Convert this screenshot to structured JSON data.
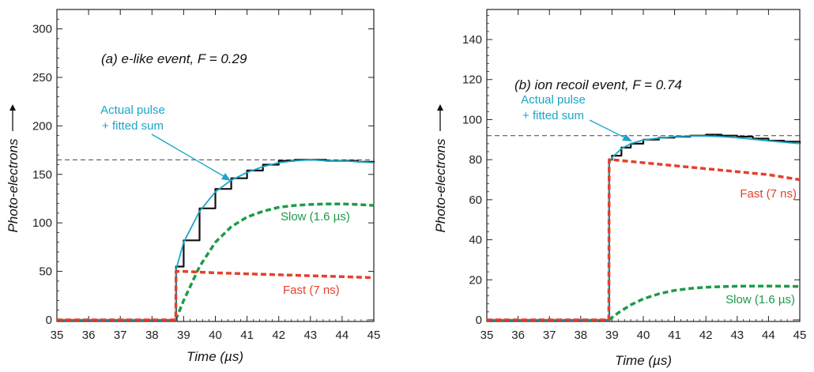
{
  "colors": {
    "actual": "#111111",
    "fit": "#1aa6c8",
    "slow": "#1e9a4a",
    "fast": "#e5402c",
    "dashed": "#444444"
  },
  "chart_data": [
    {
      "type": "line",
      "title": "(a) e-like event, F  = 0.29",
      "xlabel": "Time (µs)",
      "ylabel": "Photo-electrons",
      "xlim": [
        35,
        45
      ],
      "ylim": [
        0,
        320
      ],
      "xticks": [
        35,
        36,
        37,
        38,
        39,
        40,
        41,
        42,
        43,
        44,
        45
      ],
      "yticks": [
        0,
        50,
        100,
        150,
        200,
        250,
        300
      ],
      "reference_line": 165,
      "annotations": {
        "actual": "Actual pulse",
        "fit": "+ fitted sum",
        "slow": "Slow (1.6 µs)",
        "fast": "Fast (7 ns)"
      },
      "series": [
        {
          "key": "actual",
          "x": [
            35,
            38.75,
            38.76,
            39,
            39.5,
            40,
            40.5,
            41,
            41.5,
            42,
            42.5,
            43,
            43.5,
            44,
            44.5,
            45
          ],
          "values": [
            0,
            0,
            55,
            82,
            115,
            135,
            146,
            154,
            160,
            164,
            165,
            165,
            164,
            164,
            163,
            162
          ]
        },
        {
          "key": "fit",
          "x": [
            35,
            38.75,
            38.76,
            39,
            39.5,
            40,
            40.5,
            41,
            41.5,
            42,
            42.5,
            43,
            43.5,
            44,
            44.5,
            45
          ],
          "values": [
            0,
            0,
            52,
            80,
            112,
            132,
            144,
            152,
            158,
            162,
            164,
            165,
            164,
            164,
            163,
            162
          ]
        },
        {
          "key": "slow",
          "x": [
            38.75,
            39,
            39.5,
            40,
            40.5,
            41,
            41.5,
            42,
            42.5,
            43,
            43.5,
            44,
            44.5,
            45
          ],
          "values": [
            0,
            20,
            55,
            80,
            96,
            106,
            112,
            116,
            118,
            119,
            119.5,
            119.5,
            119,
            118
          ]
        },
        {
          "key": "fast",
          "x": [
            35,
            38.75,
            38.76,
            39,
            40,
            41,
            42,
            43,
            44,
            45
          ],
          "values": [
            0,
            0,
            50,
            50,
            48.5,
            47.5,
            46.5,
            45.5,
            44.5,
            43.5
          ]
        }
      ]
    },
    {
      "type": "line",
      "title": "(b) ion recoil event, F = 0.74",
      "xlabel": "Time (µs)",
      "ylabel": "Photo-electrons",
      "xlim": [
        35,
        45
      ],
      "ylim": [
        0,
        155
      ],
      "xticks": [
        35,
        36,
        37,
        38,
        39,
        40,
        41,
        42,
        43,
        44,
        45
      ],
      "yticks": [
        0,
        20,
        40,
        60,
        80,
        100,
        120,
        140
      ],
      "reference_line": 92,
      "annotations": {
        "actual": "Actual pulse",
        "fit": "+ fitted sum",
        "slow": "Slow (1.6 µs)",
        "fast": "Fast (7 ns)"
      },
      "series": [
        {
          "key": "actual",
          "x": [
            35,
            38.9,
            38.91,
            39,
            39.3,
            39.6,
            40,
            40.5,
            41,
            41.5,
            42,
            42.5,
            43,
            43.5,
            44,
            44.5,
            45
          ],
          "values": [
            0,
            0,
            80,
            82,
            86,
            88,
            90,
            91,
            91.5,
            92,
            92.5,
            92,
            91.5,
            90.5,
            89.5,
            89,
            88
          ]
        },
        {
          "key": "fit",
          "x": [
            35,
            38.9,
            38.91,
            39,
            39.3,
            39.6,
            40,
            40.5,
            41,
            41.5,
            42,
            42.5,
            43,
            43.5,
            44,
            44.5,
            45
          ],
          "values": [
            0,
            0,
            78,
            81,
            85.5,
            88,
            89.8,
            90.8,
            91.5,
            91.8,
            91.8,
            91.5,
            91,
            90.2,
            89.4,
            88.7,
            88
          ]
        },
        {
          "key": "slow",
          "x": [
            38.9,
            39.2,
            39.6,
            40,
            40.5,
            41,
            41.5,
            42,
            42.5,
            43,
            43.5,
            44,
            44.5,
            45
          ],
          "values": [
            0,
            3.5,
            7.5,
            10.5,
            13,
            14.7,
            15.7,
            16.3,
            16.6,
            16.8,
            16.9,
            16.9,
            16.8,
            16.7
          ]
        },
        {
          "key": "fast",
          "x": [
            35,
            38.9,
            38.91,
            39,
            40,
            41,
            42,
            43,
            44,
            45
          ],
          "values": [
            0,
            0,
            80,
            80,
            78.5,
            77,
            75.5,
            74,
            72.5,
            70
          ]
        }
      ]
    }
  ]
}
